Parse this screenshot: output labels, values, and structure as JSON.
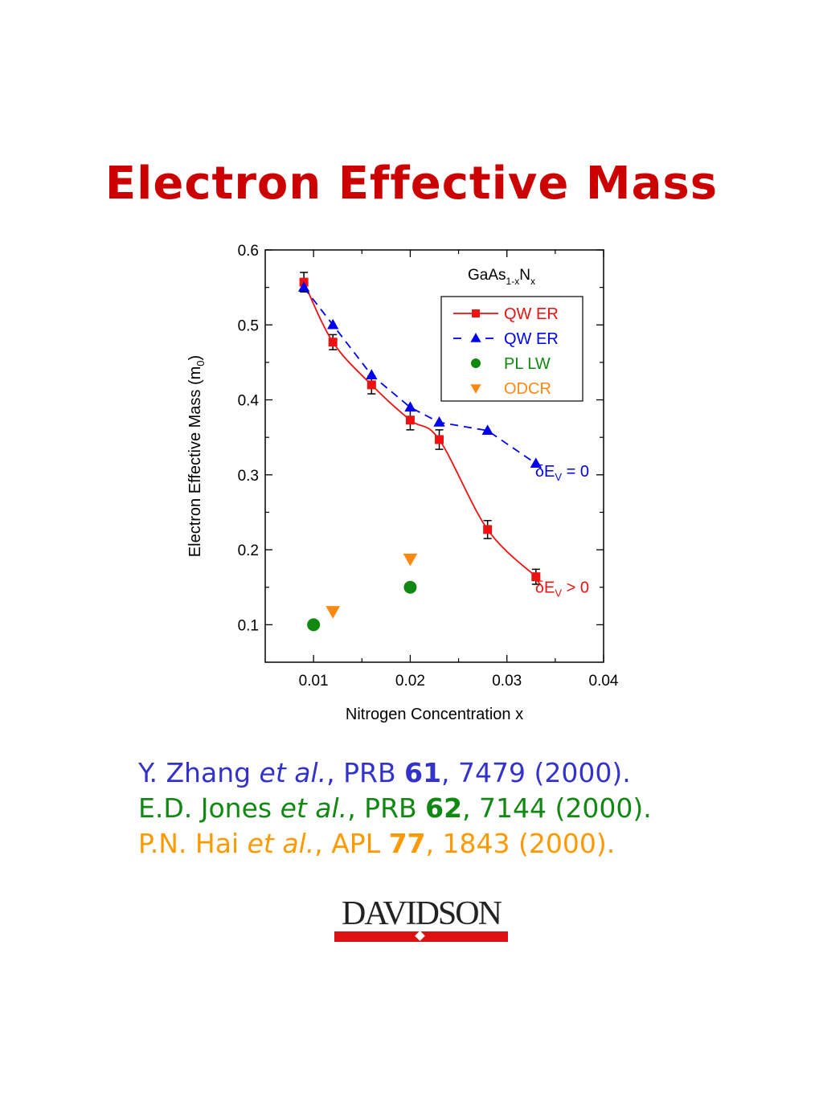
{
  "page": {
    "title": "Electron Effective Mass"
  },
  "chart_data": {
    "type": "line",
    "title": "",
    "xlabel": "Nitrogen Concentration x",
    "ylabel_main": "Electron Effective Mass (m",
    "ylabel_sub": "0",
    "ylabel_end": ")",
    "xlim": [
      0.005,
      0.04
    ],
    "ylim": [
      0.05,
      0.6
    ],
    "x_ticks": [
      0.01,
      0.02,
      0.03,
      0.04
    ],
    "x_tick_labels": [
      "0.01",
      "0.02",
      "0.03",
      "0.04"
    ],
    "y_ticks": [
      0.1,
      0.2,
      0.3,
      0.4,
      0.5,
      0.6
    ],
    "y_tick_labels": [
      "0.1",
      "0.2",
      "0.3",
      "0.4",
      "0.5",
      "0.6"
    ],
    "grid": false,
    "legend_position": "top-right",
    "material_label": {
      "base": "GaAs",
      "sub1": "1-x",
      "mid": "N",
      "sub2": "x"
    },
    "series": [
      {
        "name": "QW ER",
        "color": "#ee1111",
        "marker": "square",
        "line": "solid",
        "x": [
          0.009,
          0.012,
          0.016,
          0.02,
          0.023,
          0.028,
          0.033
        ],
        "y": [
          0.557,
          0.477,
          0.42,
          0.373,
          0.347,
          0.227,
          0.164
        ],
        "err": [
          0.013,
          0.01,
          0.012,
          0.013,
          0.013,
          0.012,
          0.01
        ]
      },
      {
        "name": "QW ER",
        "color": "#0000ee",
        "marker": "triangle-up",
        "line": "dashed",
        "x": [
          0.009,
          0.012,
          0.016,
          0.02,
          0.023,
          0.028,
          0.033
        ],
        "y": [
          0.55,
          0.5,
          0.433,
          0.39,
          0.37,
          0.359,
          0.315
        ]
      },
      {
        "name": "PL LW",
        "color": "#118811",
        "marker": "circle",
        "line": "none",
        "x": [
          0.01,
          0.02
        ],
        "y": [
          0.1,
          0.15
        ]
      },
      {
        "name": "ODCR",
        "color": "#ff8811",
        "marker": "triangle-down",
        "line": "none",
        "x": [
          0.012,
          0.02
        ],
        "y": [
          0.118,
          0.188
        ]
      }
    ],
    "annotations": [
      {
        "text_main": "δE",
        "sub": "V",
        "text_end": " = 0",
        "color": "#0000ee",
        "x": 0.0385,
        "y": 0.305
      },
      {
        "text_main": "δE",
        "sub": "V",
        "text_end": " > 0",
        "color": "#ee1111",
        "x": 0.0385,
        "y": 0.15
      }
    ]
  },
  "references": [
    {
      "author": "Y. Zhang ",
      "etal": "et al.",
      "journal": ", PRB ",
      "volume": "61",
      "rest": ", 7479 (2000)."
    },
    {
      "author": "E.D. Jones ",
      "etal": "et al.",
      "journal": ", PRB ",
      "volume": "62",
      "rest": ", 7144 (2000)."
    },
    {
      "author": "P.N. Hai ",
      "etal": "et al.",
      "journal": ", APL ",
      "volume": "77",
      "rest": ", 1843 (2000)."
    }
  ],
  "logo": {
    "text": "DAVIDSON"
  }
}
